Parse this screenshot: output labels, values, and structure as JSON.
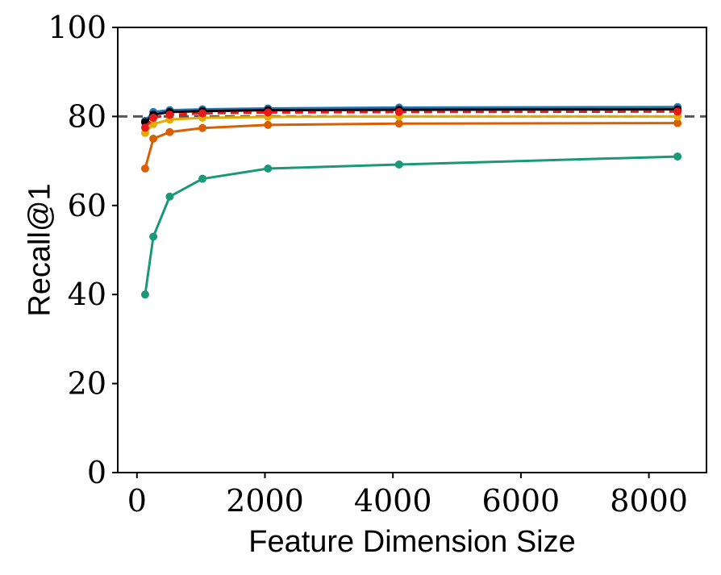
{
  "chart_data": {
    "type": "line",
    "xlabel": "Feature Dimension Size",
    "ylabel": "Recall@1",
    "xlim": [
      -300,
      8900
    ],
    "ylim": [
      0,
      100
    ],
    "xticks": [
      0,
      2000,
      4000,
      6000,
      8000
    ],
    "yticks": [
      0,
      20,
      40,
      60,
      80,
      100
    ],
    "grid": false,
    "legend": "none",
    "reference_line": {
      "y": 80,
      "style": "dashed",
      "color": "#555555"
    },
    "series": [
      {
        "color": "#1a9878",
        "x": [
          128,
          256,
          512,
          1024,
          2048,
          4096,
          8448
        ],
        "y": [
          40,
          53,
          62,
          66,
          68.3,
          69.2,
          71
        ]
      },
      {
        "color": "#d95f02",
        "x": [
          128,
          256,
          512,
          1024,
          2048,
          4096,
          8448
        ],
        "y": [
          68.3,
          75,
          76.5,
          77.4,
          78.1,
          78.4,
          78.5
        ]
      },
      {
        "color": "#e6ab02",
        "x": [
          128,
          256,
          512,
          1024,
          2048,
          4096,
          8448
        ],
        "y": [
          76.3,
          78.3,
          79.3,
          79.7,
          79.9,
          80,
          80
        ]
      },
      {
        "color": "#1f77b4",
        "x": [
          128,
          256,
          512,
          1024,
          2048,
          4096,
          8448
        ],
        "y": [
          79,
          81,
          81.4,
          81.6,
          81.8,
          82,
          82.1
        ]
      },
      {
        "color": "#000000",
        "x": [
          128,
          256,
          512,
          1024,
          2048,
          4096,
          8448
        ],
        "y": [
          78.7,
          80.4,
          81,
          81.2,
          81.4,
          81.5,
          81.6
        ]
      },
      {
        "color": "#e41a1c",
        "dashed": true,
        "x": [
          128,
          256,
          512,
          1024,
          2048,
          4096,
          8448
        ],
        "y": [
          77.5,
          79.7,
          80.4,
          80.7,
          80.9,
          81,
          81.1
        ]
      }
    ]
  }
}
